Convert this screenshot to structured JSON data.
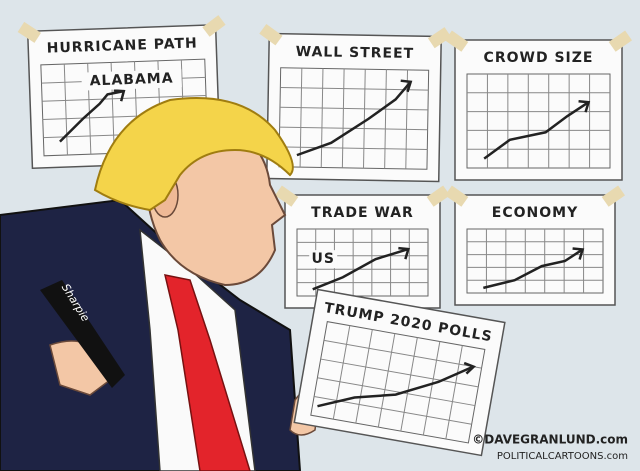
{
  "panels": [
    {
      "title": "HURRICANE PATH",
      "annotation": "ALABAMA"
    },
    {
      "title": "WALL STREET"
    },
    {
      "title": "CROWD SIZE"
    },
    {
      "title": "TRADE WAR",
      "annotation": "US"
    },
    {
      "title": "ECONOMY"
    }
  ],
  "held_chart": {
    "title": "TRUMP 2020 POLLS"
  },
  "marker": {
    "label": "Sharpie"
  },
  "credit": {
    "site": "©DAVEGRANLUND.com",
    "syndicate": "POLITICALCARTOONS.com"
  }
}
